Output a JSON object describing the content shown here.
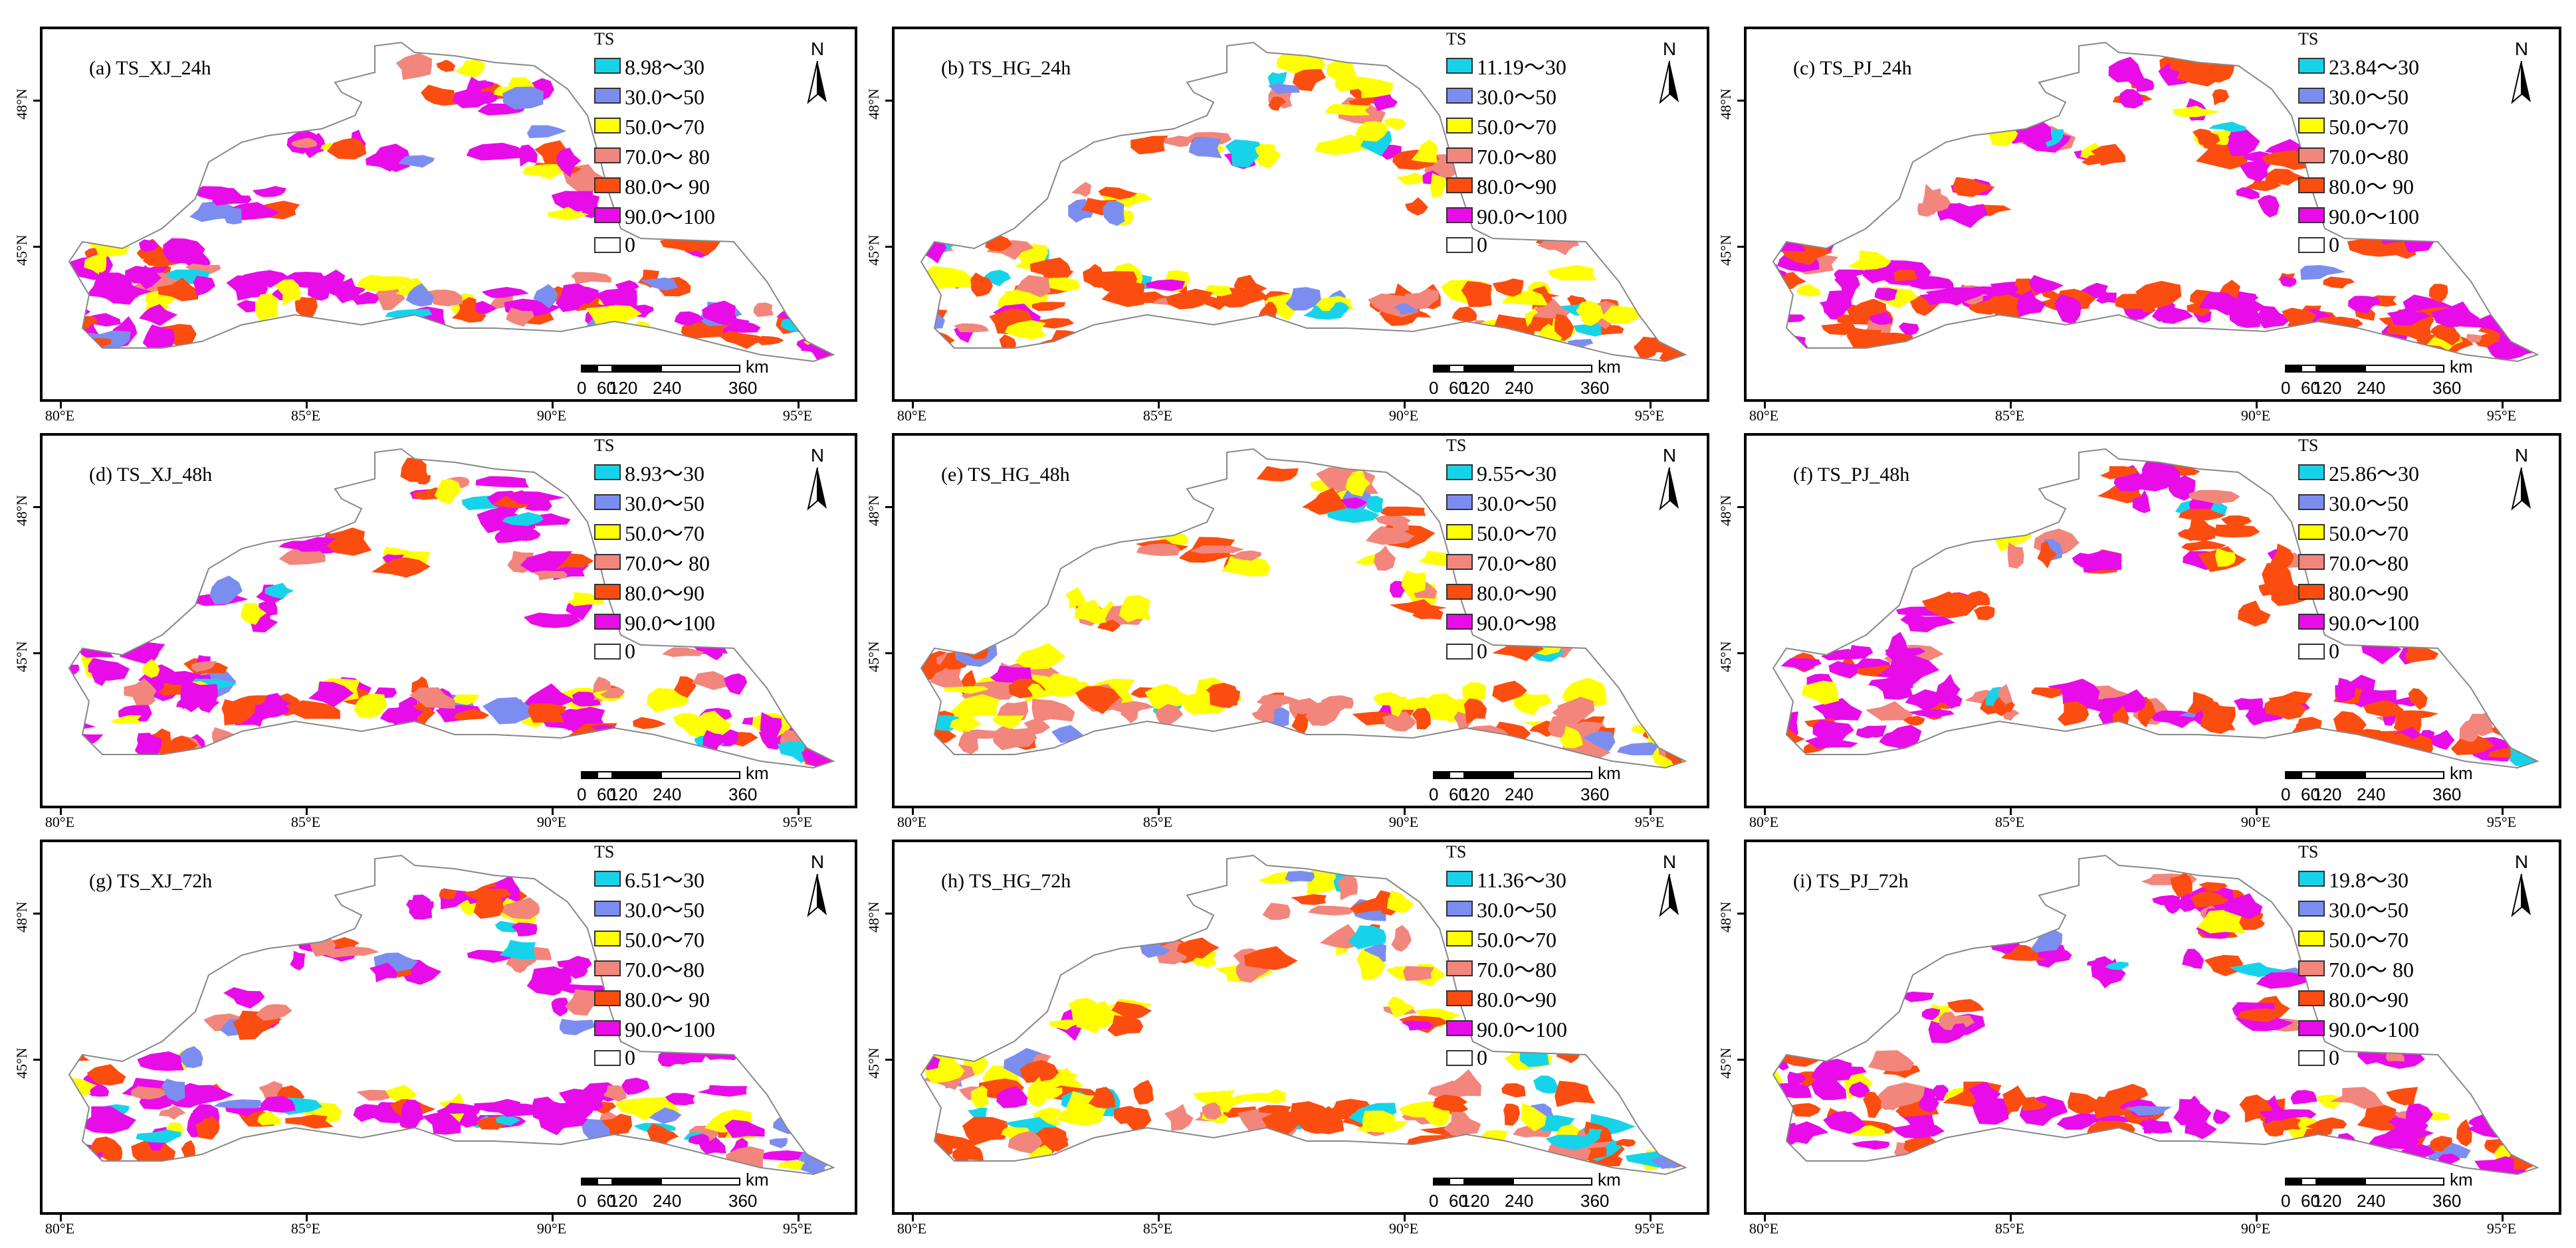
{
  "legend_title": "TS",
  "north_label": "N",
  "scale_labels": [
    "0",
    "60",
    "120",
    "240",
    "360"
  ],
  "scale_unit": "km",
  "x_ticks": [
    "80°E",
    "85°E",
    "90°E",
    "95°E"
  ],
  "y_ticks": [
    "48°N",
    "45°N"
  ],
  "colors": {
    "c1": "#17d3ea",
    "c2": "#7b8ef0",
    "c3": "#ffff00",
    "c4": "#f2867c",
    "c5": "#fb4d10",
    "c6": "#e80ce8",
    "c7": "#ffffff"
  },
  "panels": [
    {
      "title": "(a)  TS_XJ_24h",
      "legend": [
        "8.98～30",
        "30.0～50",
        "50.0～70",
        "70.0～ 80",
        "80.0～ 90",
        "90.0～100",
        "0"
      ]
    },
    {
      "title": "(b)  TS_HG_24h",
      "legend": [
        "11.19～30",
        "30.0～50",
        "50.0～70",
        "70.0～80",
        "80.0～90",
        "90.0～100",
        "0"
      ]
    },
    {
      "title": "(c)  TS_PJ_24h",
      "legend": [
        "23.84～30",
        "30.0～50",
        "50.0～70",
        "70.0～80",
        "80.0～ 90",
        "90.0～100",
        "0"
      ]
    },
    {
      "title": "(d)  TS_XJ_48h",
      "legend": [
        "8.93～30",
        "30.0～50",
        "50.0～70",
        "70.0～ 80",
        "80.0～90",
        "90.0～100",
        "0"
      ]
    },
    {
      "title": "(e)  TS_HG_48h",
      "legend": [
        "9.55～30",
        "30.0～50",
        "50.0～70",
        "70.0～80",
        "80.0～90",
        "90.0～98",
        "0"
      ]
    },
    {
      "title": "(f)  TS_PJ_48h",
      "legend": [
        "25.86～30",
        "30.0～50",
        "50.0～70",
        "70.0～80",
        "80.0～90",
        "90.0～100",
        "0"
      ]
    },
    {
      "title": "(g)  TS_XJ_72h",
      "legend": [
        "6.51～30",
        "30.0～50",
        "50.0～70",
        "70.0～80",
        "80.0～ 90",
        "90.0～100",
        "0"
      ]
    },
    {
      "title": "(h)  TS_HG_72h",
      "legend": [
        "11.36～30",
        "30.0～50",
        "50.0～70",
        "70.0～80",
        "80.0～90",
        "90.0～100",
        "0"
      ]
    },
    {
      "title": "(i)  TS_PJ_72h",
      "legend": [
        "19.8～30",
        "30.0～50",
        "50.0～70",
        "70.0～ 80",
        "80.0～90",
        "90.0～100",
        "0"
      ]
    }
  ]
}
